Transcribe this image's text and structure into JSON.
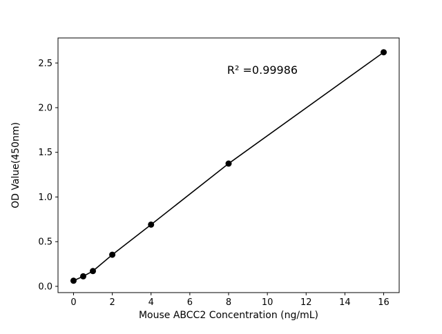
{
  "chart_data": {
    "type": "scatter",
    "title": "",
    "xlabel": "Mouse ABCC2 Concentration (ng/mL)",
    "ylabel": "OD Value(450nm)",
    "annotation": "R² =0.99986",
    "x": [
      0,
      0.5,
      1,
      2,
      4,
      8,
      16
    ],
    "y": [
      0.063,
      0.112,
      0.171,
      0.354,
      0.691,
      1.374,
      2.62
    ],
    "line_through_points": true,
    "x_ticks": [
      0,
      2,
      4,
      6,
      8,
      10,
      12,
      14,
      16
    ],
    "x_tick_labels": [
      "0",
      "2",
      "4",
      "6",
      "8",
      "10",
      "12",
      "14",
      "16"
    ],
    "y_ticks": [
      0.0,
      0.5,
      1.0,
      1.5,
      2.0,
      2.5
    ],
    "y_tick_labels": [
      "0.0",
      "0.5",
      "1.0",
      "1.5",
      "2.0",
      "2.5"
    ],
    "xlim": [
      -0.8,
      16.8
    ],
    "ylim": [
      -0.07,
      2.78
    ],
    "grid": false,
    "legend": false,
    "marker_color": "#000000",
    "line_color": "#000000",
    "frame_color": "#000000",
    "background": "#ffffff"
  }
}
